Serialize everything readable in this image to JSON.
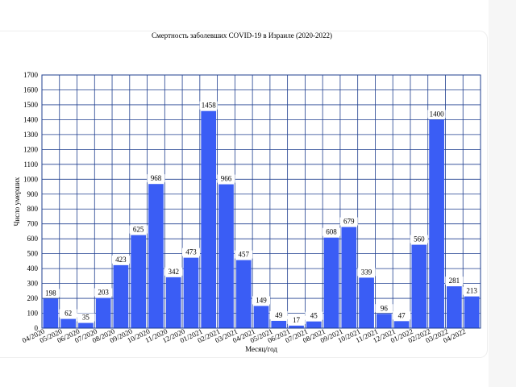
{
  "chart_data": {
    "type": "bar",
    "title": "Смертность заболевших COVID-19 в Израиле (2020-2022)",
    "x_label": "Месяц/год",
    "y_label": "Число умерших",
    "categories": [
      "04/2020",
      "05/2020",
      "06/2020",
      "07/2020",
      "08/2020",
      "09/2020",
      "10/2020",
      "11/2020",
      "12/2020",
      "01/2021",
      "02/2021",
      "03/2021",
      "04/2021",
      "05/2021",
      "06/2021",
      "07/2021",
      "08/2021",
      "09/2021",
      "10/2021",
      "11/2021",
      "12/2021",
      "01/2022",
      "02/2022",
      "03/2022",
      "04/2022"
    ],
    "values": [
      198,
      62,
      35,
      203,
      423,
      625,
      968,
      342,
      473,
      1458,
      966,
      457,
      149,
      49,
      17,
      45,
      608,
      679,
      339,
      96,
      47,
      560,
      1400,
      281,
      213
    ],
    "color": "#3a5df5",
    "ylim": [
      0,
      1700
    ],
    "yticks": [
      0,
      100,
      200,
      300,
      400,
      500,
      600,
      700,
      800,
      900,
      1000,
      1100,
      1200,
      1300,
      1400,
      1500,
      1600,
      1700
    ],
    "grid": true
  }
}
